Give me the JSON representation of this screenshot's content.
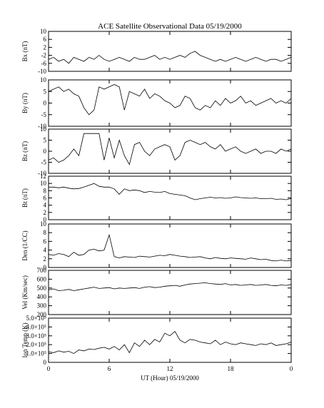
{
  "chart_data": [
    {
      "type": "line",
      "title": "ACE Satellite Observational Data   05/19/2000",
      "y_label": "Bx (nT)",
      "color": "#000000",
      "x": [
        0,
        0.5,
        1,
        1.5,
        2,
        2.5,
        3,
        3.5,
        4,
        4.5,
        5,
        5.5,
        6,
        6.5,
        7,
        7.5,
        8,
        8.5,
        9,
        9.5,
        10,
        10.5,
        11,
        11.5,
        12,
        12.5,
        13,
        13.5,
        14,
        14.5,
        15,
        15.5,
        16,
        16.5,
        17,
        17.5,
        18,
        18.5,
        19,
        19.5,
        20,
        20.5,
        21,
        21.5,
        22,
        22.5,
        23,
        23.5,
        24
      ],
      "values": [
        -4,
        -3,
        -5,
        -4,
        -6,
        -3,
        -4,
        -5,
        -3,
        -4,
        -2,
        -4,
        -5,
        -4,
        -3,
        -4,
        -5,
        -3,
        -4,
        -4,
        -3,
        -2,
        -4,
        -3,
        -4,
        -3,
        -2,
        -3,
        -1,
        0,
        -2,
        -3,
        -4,
        -5,
        -4,
        -5,
        -4,
        -3,
        -4,
        -5,
        -4,
        -3,
        -4,
        -5,
        -4,
        -4,
        -5,
        -4,
        -3
      ],
      "xlim": [
        0,
        24
      ],
      "xticks": [
        0,
        6,
        12,
        18,
        24
      ],
      "ylim": [
        -10,
        10
      ],
      "yticks": [
        -10,
        -6,
        -2,
        2,
        6,
        10
      ]
    },
    {
      "type": "line",
      "y_label": "By (nT)",
      "color": "#000000",
      "x": [
        0,
        0.5,
        1,
        1.5,
        2,
        2.5,
        3,
        3.5,
        4,
        4.5,
        5,
        5.5,
        6,
        6.5,
        7,
        7.5,
        8,
        8.5,
        9,
        9.5,
        10,
        10.5,
        11,
        11.5,
        12,
        12.5,
        13,
        13.5,
        14,
        14.5,
        15,
        15.5,
        16,
        16.5,
        17,
        17.5,
        18,
        18.5,
        19,
        19.5,
        20,
        20.5,
        21,
        21.5,
        22,
        22.5,
        23,
        23.5,
        24
      ],
      "values": [
        5,
        6,
        7,
        5,
        6,
        4,
        3,
        -2,
        -5,
        -3,
        7,
        6,
        7,
        8,
        7,
        -3,
        5,
        4,
        3,
        6,
        2,
        4,
        3,
        1,
        0,
        -2,
        -1,
        3,
        2,
        -2,
        -3,
        -1,
        -2,
        1,
        -1,
        2,
        0,
        1,
        3,
        0,
        1,
        -1,
        0,
        1,
        2,
        0,
        1,
        0,
        2
      ],
      "xlim": [
        0,
        24
      ],
      "xticks": [
        0,
        6,
        12,
        18,
        24
      ],
      "ylim": [
        -10,
        10
      ],
      "yticks": [
        -10,
        -5,
        0,
        5,
        10
      ]
    },
    {
      "type": "line",
      "y_label": "Bz (nT)",
      "color": "#000000",
      "x": [
        0,
        0.5,
        1,
        1.5,
        2,
        2.5,
        3,
        3.5,
        4,
        4.5,
        5,
        5.5,
        6,
        6.5,
        7,
        7.5,
        8,
        8.5,
        9,
        9.5,
        10,
        10.5,
        11,
        11.5,
        12,
        12.5,
        13,
        13.5,
        14,
        14.5,
        15,
        15.5,
        16,
        16.5,
        17,
        17.5,
        18,
        18.5,
        19,
        19.5,
        20,
        20.5,
        21,
        21.5,
        22,
        22.5,
        23,
        23.5,
        24
      ],
      "values": [
        -4,
        -3,
        -5,
        -4,
        -2,
        1,
        -2,
        8,
        8,
        8,
        8,
        -4,
        6,
        -3,
        5,
        -2,
        -6,
        3,
        4,
        0,
        -2,
        1,
        2,
        3,
        2,
        -4,
        -2,
        4,
        5,
        4,
        3,
        4,
        2,
        1,
        3,
        0,
        1,
        2,
        0,
        -1,
        0,
        1,
        -1,
        0,
        0,
        -1,
        1,
        0,
        1
      ],
      "xlim": [
        0,
        24
      ],
      "xticks": [
        0,
        6,
        12,
        18,
        24
      ],
      "ylim": [
        -10,
        10
      ],
      "yticks": [
        -10,
        -5,
        0,
        5,
        10
      ]
    },
    {
      "type": "line",
      "y_label": "Bt (nT)",
      "color": "#000000",
      "x": [
        0,
        0.5,
        1,
        1.5,
        2,
        2.5,
        3,
        3.5,
        4,
        4.5,
        5,
        5.5,
        6,
        6.5,
        7,
        7.5,
        8,
        8.5,
        9,
        9.5,
        10,
        10.5,
        11,
        11.5,
        12,
        12.5,
        13,
        13.5,
        14,
        14.5,
        15,
        15.5,
        16,
        16.5,
        17,
        17.5,
        18,
        18.5,
        19,
        19.5,
        20,
        20.5,
        21,
        21.5,
        22,
        22.5,
        23,
        23.5,
        24
      ],
      "values": [
        9,
        9,
        8.8,
        9,
        8.7,
        8.5,
        8.6,
        9,
        9.5,
        10,
        9.2,
        9,
        9,
        8.5,
        7,
        8.5,
        8,
        8.2,
        8,
        7.5,
        7.8,
        7.6,
        7.5,
        7.8,
        7.2,
        7,
        6.8,
        6.6,
        6,
        5.5,
        5.8,
        6,
        6.2,
        6,
        6.1,
        5.9,
        6,
        6.3,
        6.1,
        6,
        5.9,
        6,
        5.8,
        5.8,
        5.9,
        5.6,
        5.7,
        5.5,
        5.8
      ],
      "xlim": [
        0,
        24
      ],
      "xticks": [
        0,
        6,
        12,
        18,
        24
      ],
      "ylim": [
        0,
        12
      ],
      "yticks": [
        0,
        2,
        4,
        6,
        8,
        10,
        12
      ]
    },
    {
      "type": "line",
      "y_label": "Den (1/CC)",
      "color": "#000000",
      "x": [
        0,
        0.5,
        1,
        1.5,
        2,
        2.5,
        3,
        3.5,
        4,
        4.5,
        5,
        5.5,
        6,
        6.5,
        7,
        7.5,
        8,
        8.5,
        9,
        9.5,
        10,
        10.5,
        11,
        11.5,
        12,
        12.5,
        13,
        13.5,
        14,
        14.5,
        15,
        15.5,
        16,
        16.5,
        17,
        17.5,
        18,
        18.5,
        19,
        19.5,
        20,
        20.5,
        21,
        21.5,
        22,
        22.5,
        23,
        23.5,
        24
      ],
      "values": [
        3,
        2.8,
        3.2,
        3,
        2.5,
        3.5,
        2.8,
        3,
        4,
        4.2,
        3.8,
        4,
        7.5,
        2.5,
        2.2,
        2.5,
        2.4,
        2.3,
        2.6,
        2.5,
        2.4,
        2.6,
        2.8,
        2.7,
        3,
        2.8,
        2.6,
        2.5,
        2.3,
        2.4,
        2.5,
        2.2,
        2,
        2.3,
        2.1,
        2,
        2.2,
        2.1,
        2,
        1.9,
        2.2,
        2,
        1.8,
        1.9,
        1.6,
        1.5,
        1.7,
        1.5,
        1.6
      ],
      "xlim": [
        0,
        24
      ],
      "xticks": [
        0,
        6,
        12,
        18,
        24
      ],
      "ylim": [
        0,
        10
      ],
      "yticks": [
        0,
        2,
        4,
        6,
        8,
        10
      ]
    },
    {
      "type": "line",
      "y_label": "Vel (Km/sec)",
      "color": "#000000",
      "x": [
        0,
        0.5,
        1,
        1.5,
        2,
        2.5,
        3,
        3.5,
        4,
        4.5,
        5,
        5.5,
        6,
        6.5,
        7,
        7.5,
        8,
        8.5,
        9,
        9.5,
        10,
        10.5,
        11,
        11.5,
        12,
        12.5,
        13,
        13.5,
        14,
        14.5,
        15,
        15.5,
        16,
        16.5,
        17,
        17.5,
        18,
        18.5,
        19,
        19.5,
        20,
        20.5,
        21,
        21.5,
        22,
        22.5,
        23,
        23.5,
        24
      ],
      "values": [
        480,
        490,
        470,
        475,
        485,
        470,
        480,
        490,
        500,
        510,
        495,
        500,
        505,
        490,
        500,
        495,
        500,
        505,
        495,
        510,
        515,
        505,
        510,
        520,
        525,
        530,
        520,
        535,
        545,
        550,
        555,
        560,
        550,
        545,
        540,
        550,
        535,
        540,
        530,
        535,
        540,
        530,
        535,
        540,
        530,
        525,
        535,
        530,
        540
      ],
      "xlim": [
        0,
        24
      ],
      "xticks": [
        0,
        6,
        12,
        18,
        24
      ],
      "ylim": [
        200,
        700
      ],
      "yticks": [
        200,
        300,
        400,
        500,
        600,
        700
      ]
    },
    {
      "type": "line",
      "y_label": "Ion Temp (K)",
      "x_label": "UT (Hour)   05/19/2000",
      "color": "#000000",
      "x": [
        0,
        0.5,
        1,
        1.5,
        2,
        2.5,
        3,
        3.5,
        4,
        4.5,
        5,
        5.5,
        6,
        6.5,
        7,
        7.5,
        8,
        8.5,
        9,
        9.5,
        10,
        10.5,
        11,
        11.5,
        12,
        12.5,
        13,
        13.5,
        14,
        14.5,
        15,
        15.5,
        16,
        16.5,
        17,
        17.5,
        18,
        18.5,
        19,
        19.5,
        20,
        20.5,
        21,
        21.5,
        22,
        22.5,
        23,
        23.5,
        24
      ],
      "values": [
        120000,
        110000,
        130000,
        115000,
        125000,
        100000,
        140000,
        130000,
        150000,
        145000,
        160000,
        170000,
        150000,
        180000,
        140000,
        200000,
        110000,
        220000,
        180000,
        250000,
        200000,
        260000,
        230000,
        330000,
        300000,
        350000,
        250000,
        220000,
        260000,
        250000,
        230000,
        220000,
        210000,
        250000,
        200000,
        230000,
        210000,
        200000,
        220000,
        210000,
        200000,
        190000,
        210000,
        200000,
        220000,
        190000,
        200000,
        210000,
        230000
      ],
      "xlim": [
        0,
        24
      ],
      "xticks": [
        0,
        6,
        12,
        18,
        {
          "value": 24,
          "label": "0"
        }
      ],
      "ylim": [
        0,
        500000
      ],
      "yticks": [
        0,
        {
          "value": 100000,
          "label": "1.0×10⁵"
        },
        {
          "value": 200000,
          "label": "2.0×10⁵"
        },
        {
          "value": 300000,
          "label": "3.0×10⁵"
        },
        {
          "value": 400000,
          "label": "4.0×10⁵"
        },
        {
          "value": 500000,
          "label": "5.0×10⁵"
        }
      ]
    }
  ]
}
